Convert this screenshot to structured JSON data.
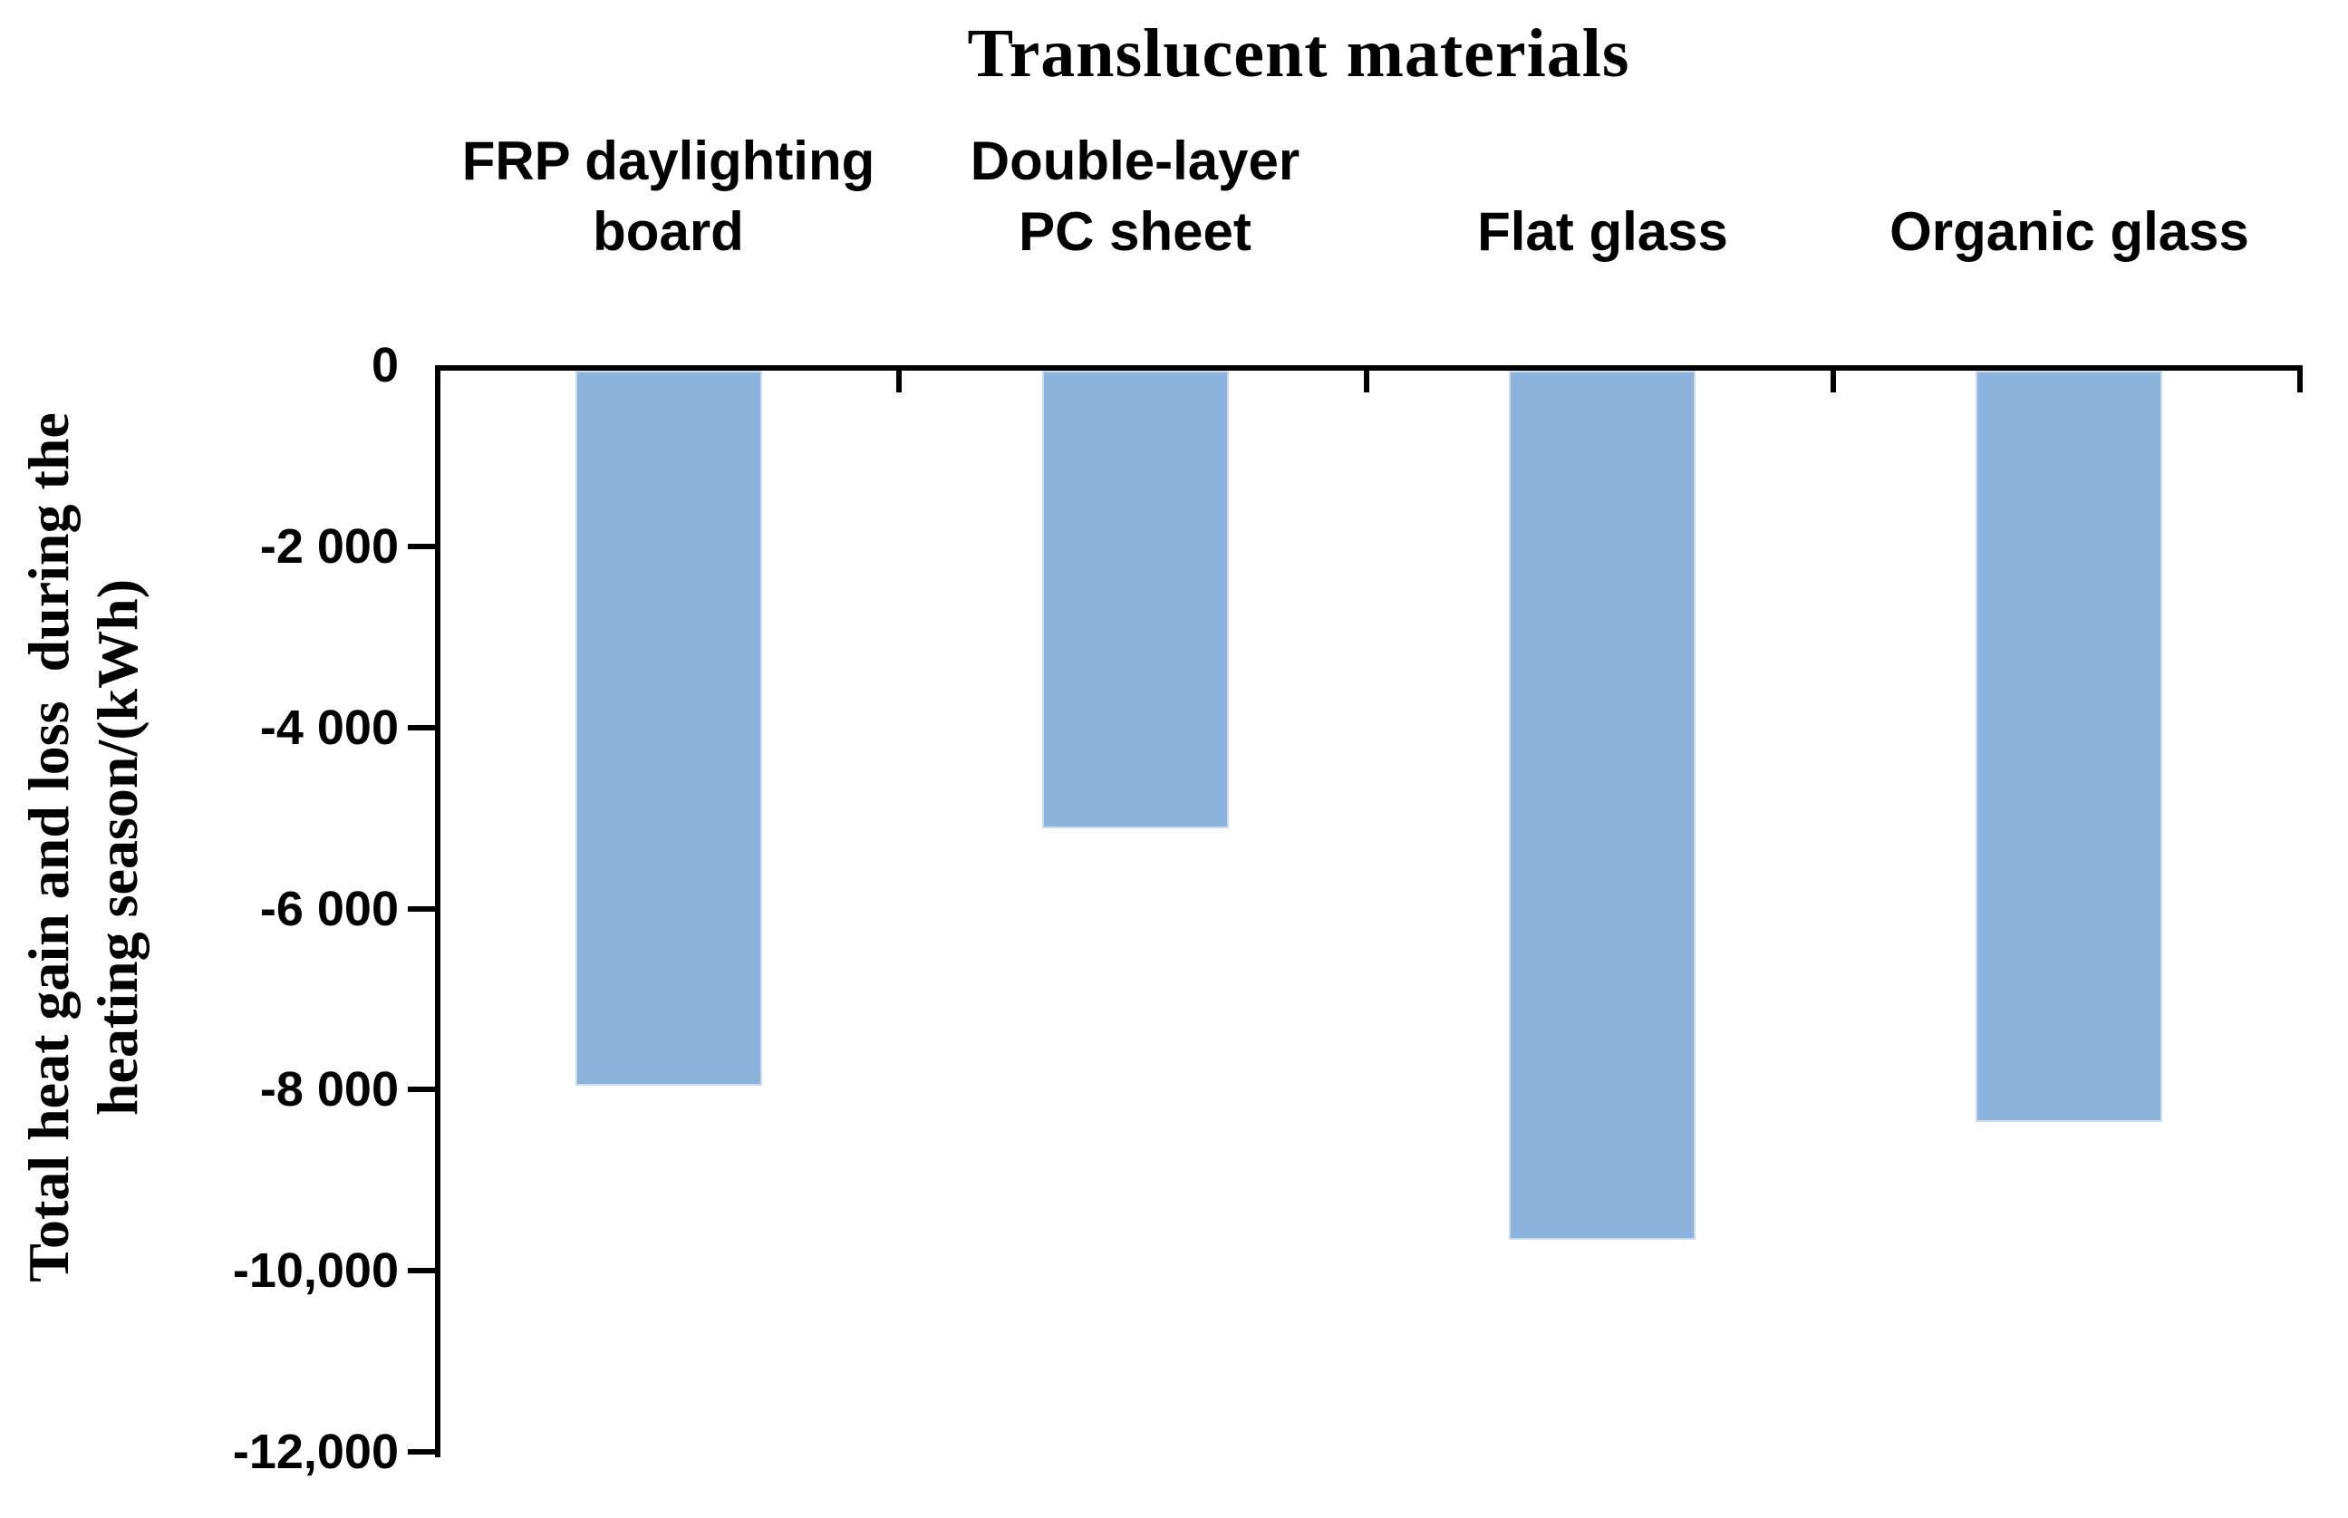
{
  "chart_data": {
    "type": "bar",
    "title": "Translucent materials",
    "categories": [
      "FRP daylighting\nboard",
      "Double-layer\nPC sheet",
      "Flat glass",
      "Organic glass"
    ],
    "values": [
      -7900,
      -5050,
      -9600,
      -8300
    ],
    "ylabel_line1": "Total heat gain and loss  during the",
    "ylabel_line2": "heating season/(kWh)",
    "yticks": [
      {
        "value": 0,
        "label": "0"
      },
      {
        "value": -2000,
        "label": "-2 000"
      },
      {
        "value": -4000,
        "label": "-4 000"
      },
      {
        "value": -6000,
        "label": "-6 000"
      },
      {
        "value": -8000,
        "label": "-8 000"
      },
      {
        "value": -10000,
        "label": "-10,000"
      },
      {
        "value": -12000,
        "label": "-12,000"
      }
    ],
    "ylim": [
      -12000,
      0
    ],
    "grid": false,
    "legend_position": "none",
    "bar_color": "#8BB3DB",
    "bar_border_color": "#CADCEE",
    "axis_color": "#000000"
  }
}
